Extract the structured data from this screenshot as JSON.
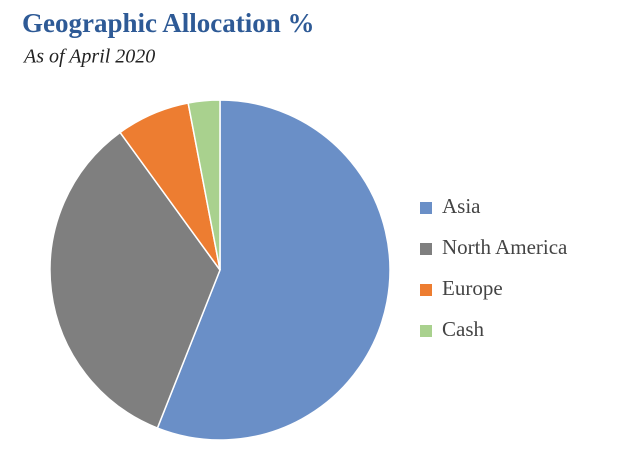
{
  "chart_data": {
    "type": "pie",
    "title": "Geographic Allocation %",
    "subtitle": "As of April 2020",
    "categories": [
      "Asia",
      "North America",
      "Europe",
      "Cash"
    ],
    "values": [
      56,
      34,
      7,
      3
    ],
    "colors": [
      "#6a8fc7",
      "#7f7f7f",
      "#ed7d31",
      "#a9d18e"
    ],
    "legend": "right"
  }
}
